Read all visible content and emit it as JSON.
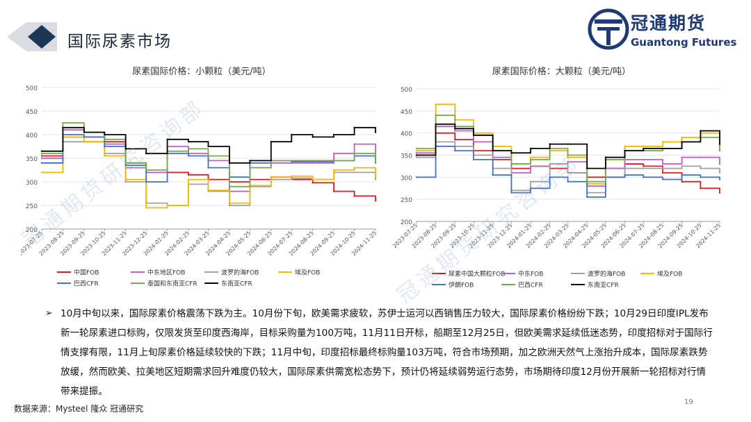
{
  "page": {
    "title": "国际尿素市场",
    "logo_cn": "冠通期货",
    "logo_en": "Guantong Futures",
    "watermark": "冠通期货研究咨询部",
    "bullet": "10月中旬以来，国际尿素价格震荡下跌为主。10月份下旬，欧美需求疲软，苏伊士运河以西销售压力较大，国际尿素价格纷纷下跌；10月29日印度IPL发布新一轮尿素进口标购，仅限发货至印度西海岸，目标采购量为100万吨，11月11日开标，船期至12月25日，但欧美需求延续低迷态势，印度招标对于国际行情支撑有限，11月上旬尿素价格延续较快的下跌；11月中旬，印度招标最终标购量103万吨，符合市场预期，加之欧洲天然气上涨抬升成本，国际尿素跌势放缓，然而欧美、拉美地区短期需求回升难度仍较大，国际尿素供需宽松态势下，预计仍将延续弱势运行态势，市场期待印度12月份开展新一轮招标对行情带来提振。",
    "source": "数据来源：Mysteel 隆众 冠通研究",
    "page_number": "19"
  },
  "chart_data": [
    {
      "type": "line",
      "title": "尿素国际价格：小颗粒（美元/吨）",
      "ylim": [
        200,
        500
      ],
      "yticks": [
        200,
        250,
        300,
        350,
        400,
        450,
        500
      ],
      "x_start": "2023-07-25",
      "x_end": "2024-11-25",
      "x_ticks": [
        "2023-07-25",
        "2023-08-25",
        "2023-09-25",
        "2023-10-25",
        "2023-11-25",
        "2023-12-25",
        "2024-01-25",
        "2024-02-25",
        "2024-03-25",
        "2024-04-25",
        "2024-05-25",
        "2024-06-25",
        "2024-07-25",
        "2024-08-25",
        "2024-09-25",
        "2024-10-25",
        "2024-11-25"
      ],
      "x": [
        "2023-07-25",
        "2023-08-25",
        "2023-09-25",
        "2023-10-25",
        "2023-11-25",
        "2023-12-25",
        "2024-01-25",
        "2024-02-25",
        "2024-03-25",
        "2024-04-25",
        "2024-05-25",
        "2024-06-25",
        "2024-07-25",
        "2024-08-25",
        "2024-09-25",
        "2024-10-25",
        "2024-11-25"
      ],
      "series": [
        {
          "name": "中国FOB",
          "color": "#e31a1c",
          "values": [
            355,
            395,
            395,
            385,
            340,
            320,
            320,
            315,
            305,
            300,
            305,
            310,
            305,
            298,
            280,
            270,
            260
          ]
        },
        {
          "name": "中东地区FOB",
          "color": "#c05fc0",
          "values": [
            350,
            410,
            405,
            380,
            330,
            320,
            375,
            360,
            345,
            280,
            330,
            340,
            340,
            340,
            360,
            380,
            345
          ]
        },
        {
          "name": "波罗的海FOB",
          "color": "#a0a0a0",
          "values": [
            340,
            385,
            385,
            360,
            300,
            255,
            250,
            295,
            280,
            250,
            290,
            305,
            308,
            305,
            320,
            320,
            305
          ]
        },
        {
          "name": "埃及FOB",
          "color": "#f5b800",
          "values": [
            320,
            395,
            385,
            355,
            305,
            245,
            250,
            305,
            282,
            255,
            292,
            310,
            312,
            305,
            325,
            330,
            310
          ]
        },
        {
          "name": "巴西CFR",
          "color": "#4472c4",
          "values": [
            340,
            400,
            395,
            375,
            335,
            300,
            360,
            355,
            330,
            310,
            340,
            345,
            343,
            343,
            345,
            355,
            340
          ]
        },
        {
          "name": "泰国和东南亚CFR",
          "color": "#70ad47",
          "values": [
            360,
            425,
            405,
            390,
            340,
            325,
            365,
            370,
            355,
            290,
            330,
            345,
            345,
            345,
            345,
            360,
            340
          ]
        },
        {
          "name": "东南亚CFR",
          "color": "#000000",
          "values": [
            365,
            415,
            405,
            400,
            370,
            360,
            390,
            385,
            375,
            340,
            345,
            385,
            400,
            395,
            400,
            415,
            405
          ]
        }
      ]
    },
    {
      "type": "line",
      "title": "尿素国际价格：大颗粒（美元/吨）",
      "ylim": [
        200,
        500
      ],
      "yticks": [
        200,
        250,
        300,
        350,
        400,
        450,
        500
      ],
      "x_start": "2023-07-25",
      "x_end": "2024-11-25",
      "x_ticks": [
        "2023-07-25",
        "2023-08-25",
        "2023-09-25",
        "2023-10-25",
        "2023-11-25",
        "2023-12-25",
        "2024-01-25",
        "2024-02-25",
        "2024-03-25",
        "2024-04-25",
        "2024-05-25",
        "2024-06-25",
        "2024-07-25",
        "2024-08-25",
        "2024-09-25",
        "2024-10-25",
        "2024-11-25"
      ],
      "x": [
        "2023-07-25",
        "2023-08-25",
        "2023-09-25",
        "2023-10-25",
        "2023-11-25",
        "2023-12-25",
        "2024-01-25",
        "2024-02-25",
        "2024-03-25",
        "2024-04-25",
        "2024-05-25",
        "2024-06-25",
        "2024-07-25",
        "2024-08-25",
        "2024-09-25",
        "2024-10-25",
        "2024-11-25"
      ],
      "series": [
        {
          "name": "尿素中国大颗粒FOB",
          "color": "#e31a1c",
          "values": [
            350,
            400,
            385,
            360,
            340,
            320,
            325,
            320,
            310,
            300,
            320,
            330,
            325,
            310,
            290,
            275,
            265
          ]
        },
        {
          "name": "中东FOB",
          "color": "#c05fc0",
          "values": [
            355,
            415,
            405,
            380,
            345,
            310,
            325,
            330,
            335,
            280,
            320,
            340,
            340,
            330,
            345,
            345,
            330
          ]
        },
        {
          "name": "波罗的海FOB",
          "color": "#a0a0a0",
          "values": [
            345,
            380,
            370,
            350,
            320,
            270,
            290,
            330,
            310,
            265,
            300,
            320,
            320,
            320,
            325,
            320,
            310
          ]
        },
        {
          "name": "埃及FOB",
          "color": "#f5b800",
          "values": [
            360,
            465,
            430,
            400,
            370,
            330,
            345,
            360,
            345,
            285,
            340,
            370,
            370,
            380,
            390,
            400,
            360
          ]
        },
        {
          "name": "伊朗FOB",
          "color": "#4472c4",
          "values": [
            300,
            370,
            360,
            340,
            305,
            265,
            275,
            300,
            290,
            255,
            300,
            305,
            300,
            295,
            305,
            300,
            295
          ]
        },
        {
          "name": "巴西CFR",
          "color": "#70ad47",
          "values": [
            365,
            440,
            415,
            395,
            360,
            330,
            340,
            365,
            350,
            290,
            340,
            360,
            360,
            365,
            380,
            390,
            360
          ]
        },
        {
          "name": "东南亚CFR",
          "color": "#000000",
          "values": [
            350,
            420,
            410,
            395,
            360,
            355,
            365,
            375,
            375,
            320,
            345,
            360,
            365,
            365,
            380,
            405,
            375
          ]
        }
      ]
    }
  ]
}
